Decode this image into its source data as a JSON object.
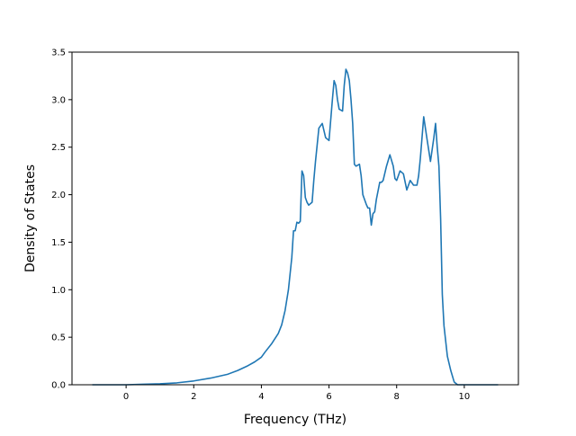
{
  "chart_data": {
    "type": "line",
    "title": "",
    "xlabel": "Frequency (THz)",
    "ylabel": "Density of States",
    "xlim": [
      -1.6,
      11.6
    ],
    "ylim": [
      0.0,
      3.5
    ],
    "xticks": [
      0,
      2,
      4,
      6,
      8,
      10
    ],
    "xtick_labels": [
      "0",
      "2",
      "4",
      "6",
      "8",
      "10"
    ],
    "yticks": [
      0.0,
      0.5,
      1.0,
      1.5,
      2.0,
      2.5,
      3.0,
      3.5
    ],
    "ytick_labels": [
      "0.0",
      "0.5",
      "1.0",
      "1.5",
      "2.0",
      "2.5",
      "3.0",
      "3.5"
    ],
    "grid": false,
    "legend": "none",
    "line_color": "#1f77b4",
    "series": [
      {
        "x": [
          -1.0,
          0.0,
          0.5,
          1.0,
          1.5,
          2.0,
          2.5,
          3.0,
          3.3,
          3.6,
          3.8,
          4.0,
          4.1,
          4.3,
          4.5,
          4.6,
          4.7,
          4.8,
          4.9,
          4.95,
          5.0,
          5.05,
          5.1,
          5.15,
          5.2,
          5.25,
          5.3,
          5.35,
          5.4,
          5.5,
          5.55,
          5.6,
          5.7,
          5.8,
          5.9,
          6.0,
          6.1,
          6.15,
          6.2,
          6.25,
          6.3,
          6.4,
          6.45,
          6.5,
          6.55,
          6.6,
          6.65,
          6.7,
          6.75,
          6.8,
          6.9,
          6.95,
          7.0,
          7.1,
          7.15,
          7.2,
          7.25,
          7.3,
          7.35,
          7.4,
          7.5,
          7.55,
          7.6,
          7.7,
          7.8,
          7.9,
          7.95,
          8.0,
          8.1,
          8.2,
          8.3,
          8.4,
          8.5,
          8.6,
          8.65,
          8.7,
          8.8,
          8.9,
          9.0,
          9.1,
          9.15,
          9.2,
          9.25,
          9.3,
          9.35,
          9.4,
          9.5,
          9.6,
          9.7,
          9.8,
          9.9,
          10.0,
          10.1,
          10.5,
          11.0
        ],
        "y": [
          0.0,
          0.0,
          0.005,
          0.01,
          0.02,
          0.04,
          0.07,
          0.11,
          0.15,
          0.2,
          0.24,
          0.29,
          0.34,
          0.43,
          0.54,
          0.63,
          0.78,
          1.0,
          1.34,
          1.62,
          1.62,
          1.71,
          1.7,
          1.72,
          2.25,
          2.2,
          1.97,
          1.92,
          1.89,
          1.92,
          2.15,
          2.35,
          2.7,
          2.75,
          2.6,
          2.57,
          3.0,
          3.2,
          3.15,
          3.0,
          2.9,
          2.88,
          3.15,
          3.32,
          3.28,
          3.2,
          3.0,
          2.75,
          2.32,
          2.3,
          2.32,
          2.2,
          2.0,
          1.9,
          1.86,
          1.86,
          1.68,
          1.8,
          1.82,
          1.95,
          2.13,
          2.13,
          2.15,
          2.3,
          2.42,
          2.3,
          2.17,
          2.15,
          2.25,
          2.22,
          2.05,
          2.15,
          2.1,
          2.1,
          2.2,
          2.38,
          2.82,
          2.58,
          2.35,
          2.6,
          2.75,
          2.5,
          2.3,
          1.75,
          0.95,
          0.62,
          0.3,
          0.15,
          0.03,
          0.0,
          0.0,
          0.0,
          0.0,
          0.0,
          0.0
        ]
      }
    ]
  }
}
